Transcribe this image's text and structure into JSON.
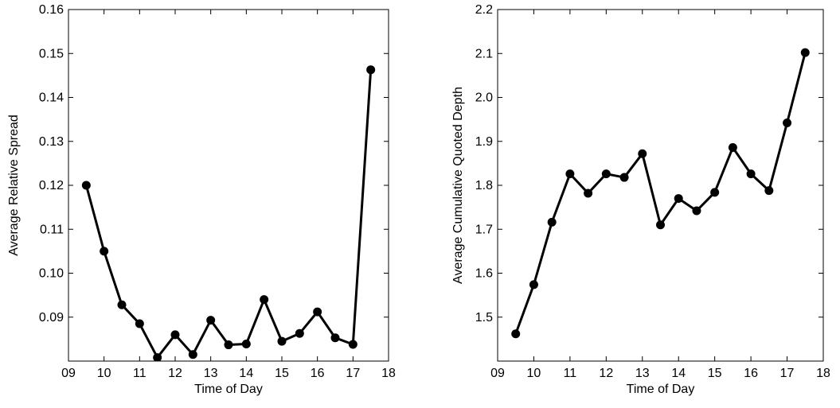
{
  "chart_data": [
    {
      "type": "line",
      "title": "",
      "xlabel": "Time of Day",
      "ylabel": "Average Relative Spread",
      "xlim": [
        9,
        18
      ],
      "ylim": [
        0.08,
        0.16
      ],
      "xticks": [
        "09",
        "10",
        "11",
        "12",
        "13",
        "14",
        "15",
        "16",
        "17",
        "18"
      ],
      "yticks": [
        "0.09",
        "0.10",
        "0.11",
        "0.12",
        "0.13",
        "0.14",
        "0.15",
        "0.16"
      ],
      "x": [
        9.5,
        10,
        10.5,
        11,
        11.5,
        12,
        12.5,
        13,
        13.5,
        14,
        14.5,
        15,
        15.5,
        16,
        16.5,
        17,
        17.5
      ],
      "y": [
        0.12,
        0.105,
        0.0928,
        0.0885,
        0.0808,
        0.086,
        0.0815,
        0.0893,
        0.0837,
        0.0839,
        0.094,
        0.0845,
        0.0863,
        0.0912,
        0.0853,
        0.0838,
        0.1463
      ],
      "grid": false,
      "color": "#000000"
    },
    {
      "type": "line",
      "title": "",
      "xlabel": "Time of Day",
      "ylabel": "Average Cumulative Quoted Depth",
      "xlim": [
        9,
        18
      ],
      "ylim": [
        1.4,
        2.2
      ],
      "xticks": [
        "09",
        "10",
        "11",
        "12",
        "13",
        "14",
        "15",
        "16",
        "17",
        "18"
      ],
      "yticks": [
        "1.5",
        "1.6",
        "1.7",
        "1.8",
        "1.9",
        "2.0",
        "2.1",
        "2.2"
      ],
      "x": [
        9.5,
        10,
        10.5,
        11,
        11.5,
        12,
        12.5,
        13,
        13.5,
        14,
        14.5,
        15,
        15.5,
        16,
        16.5,
        17,
        17.5
      ],
      "y": [
        1.462,
        1.574,
        1.716,
        1.826,
        1.782,
        1.826,
        1.818,
        1.872,
        1.71,
        1.77,
        1.742,
        1.784,
        1.886,
        1.826,
        1.788,
        1.942,
        2.102
      ],
      "grid": false,
      "color": "#000000"
    }
  ]
}
